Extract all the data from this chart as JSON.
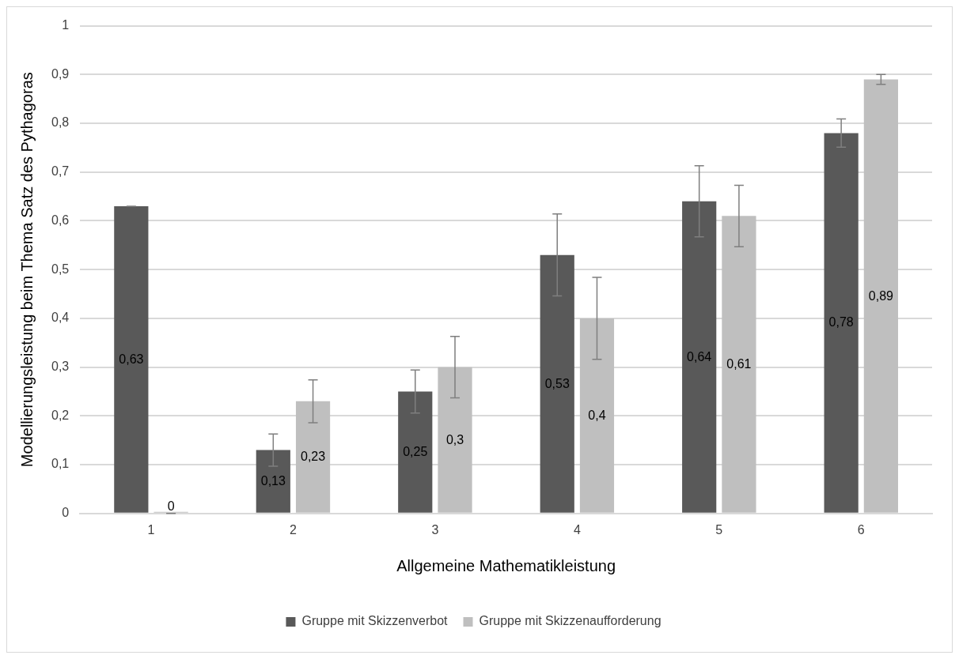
{
  "chart_data": {
    "type": "bar",
    "xlabel": "Allgemeine Mathematikleistung",
    "ylabel": "Modellierungsleistung beim Thema Satz des Pythagoras",
    "categories": [
      "1",
      "2",
      "3",
      "4",
      "5",
      "6"
    ],
    "series": [
      {
        "name": "Gruppe mit Skizzenverbot",
        "color": "#595959",
        "values": [
          0.63,
          0.13,
          0.25,
          0.53,
          0.64,
          0.78
        ],
        "errors": [
          0,
          0.033,
          0.044,
          0.084,
          0.073,
          0.029
        ],
        "value_labels": [
          "0,63",
          "0,13",
          "0,25",
          "0,53",
          "0,64",
          "0,78"
        ]
      },
      {
        "name": "Gruppe mit Skizzenaufforderung",
        "color": "#bfbfbf",
        "values": [
          0,
          0.23,
          0.3,
          0.4,
          0.61,
          0.89
        ],
        "errors": [
          0,
          0.044,
          0.063,
          0.084,
          0.063,
          0.01
        ],
        "value_labels": [
          "0",
          "0,23",
          "0,3",
          "0,4",
          "0,61",
          "0,89"
        ]
      }
    ],
    "ylim": [
      0,
      1
    ],
    "yticks": [
      0,
      {
        "value": 0.1,
        "label": "0,1"
      },
      {
        "value": 0.2,
        "label": "0,2"
      },
      {
        "value": 0.3,
        "label": "0,3"
      },
      {
        "value": 0.4,
        "label": "0,4"
      },
      {
        "value": 0.5,
        "label": "0,5"
      },
      {
        "value": 0.6,
        "label": "0,6"
      },
      {
        "value": 0.7,
        "label": "0,7"
      },
      {
        "value": 0.8,
        "label": "0,8"
      },
      {
        "value": 0.9,
        "label": "0,9"
      },
      1
    ],
    "grid": "y",
    "legend": "bottom"
  }
}
